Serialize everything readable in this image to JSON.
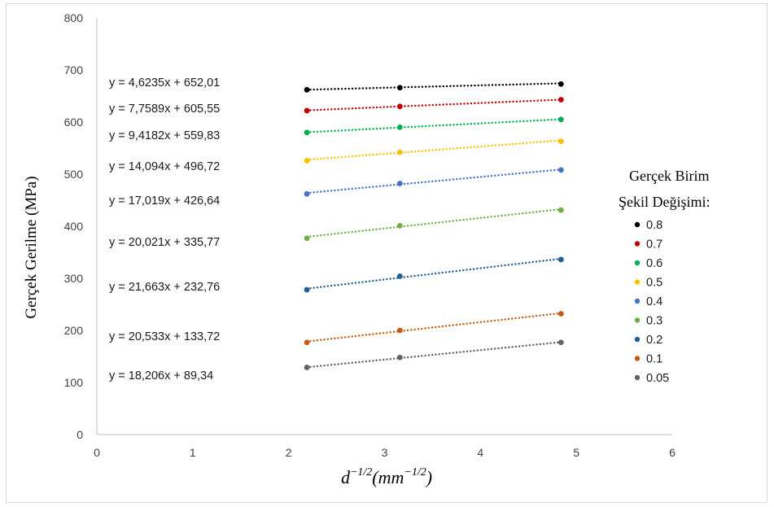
{
  "chart_data": {
    "type": "scatter",
    "ylabel": "Gerçek Gerilme (MPa)",
    "xlabel": "d^(-1/2) (mm^(-1/2))",
    "xlabel_parts": {
      "base": "d",
      "exp": "−1/2",
      "unit_base": "mm",
      "unit_exp": "−1/2"
    },
    "xlim": [
      0,
      6
    ],
    "ylim": [
      0,
      800
    ],
    "xticks": [
      0,
      1,
      2,
      3,
      4,
      5,
      6
    ],
    "yticks": [
      0,
      100,
      200,
      300,
      400,
      500,
      600,
      700,
      800
    ],
    "grid": false,
    "legend": {
      "title_line1": "Gerçek Birim",
      "title_line2": "Şekil Değişimi:",
      "position": "right"
    },
    "x": [
      2.19,
      3.16,
      4.84
    ],
    "series": [
      {
        "name": "0.8",
        "color": "#000000",
        "values": [
          662,
          666,
          673
        ],
        "equation": "y = 4,6235x + 652,01"
      },
      {
        "name": "0.7",
        "color": "#c00000",
        "values": [
          622,
          630,
          643
        ],
        "equation": "y = 7,7589x + 605,55"
      },
      {
        "name": "0.6",
        "color": "#00b050",
        "values": [
          580,
          590,
          605
        ],
        "equation": "y = 9,4182x + 559,83"
      },
      {
        "name": "0.5",
        "color": "#ffc000",
        "values": [
          526,
          542,
          563
        ],
        "equation": "y = 14,094x + 496,72"
      },
      {
        "name": "0.4",
        "color": "#4472c4",
        "values": [
          462,
          482,
          508
        ],
        "equation": "y = 17,019x + 426,64"
      },
      {
        "name": "0.3",
        "color": "#70ad47",
        "values": [
          377,
          401,
          431
        ],
        "equation": "y = 20,021x + 335,77"
      },
      {
        "name": "0.2",
        "color": "#255e91",
        "values": [
          278,
          304,
          336
        ],
        "equation": "y = 21,663x + 232,76"
      },
      {
        "name": "0.1",
        "color": "#c55a11",
        "values": [
          177,
          200,
          232
        ],
        "equation": "y = 20,533x + 133,72"
      },
      {
        "name": "0.05",
        "color": "#636363",
        "values": [
          129,
          148,
          177
        ],
        "equation": "y = 18,206x + 89,34"
      }
    ]
  }
}
